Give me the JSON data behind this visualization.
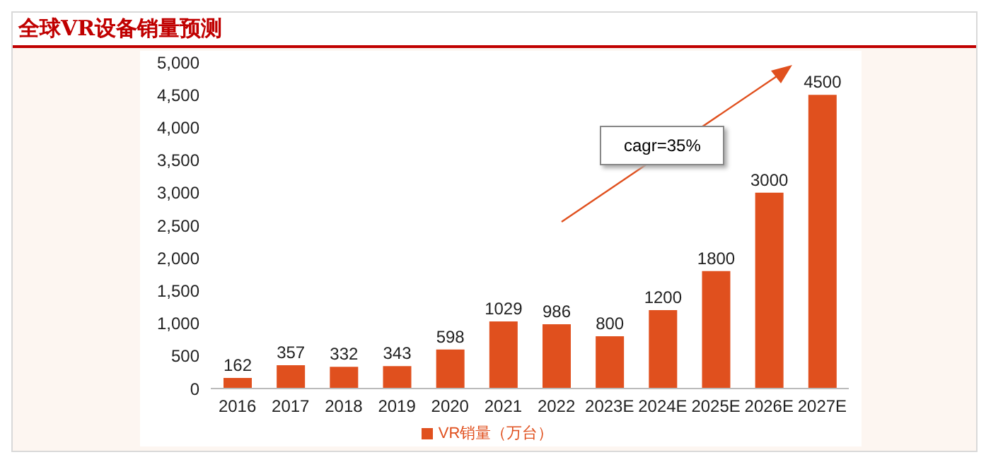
{
  "chart_data": {
    "type": "bar",
    "title": "全球VR设备销量预测",
    "categories": [
      "2016",
      "2017",
      "2018",
      "2019",
      "2020",
      "2021",
      "2022",
      "2023E",
      "2024E",
      "2025E",
      "2026E",
      "2027E"
    ],
    "series": [
      {
        "name": "VR销量（万台）",
        "color": "#e0501e",
        "values": [
          162,
          357,
          332,
          343,
          598,
          1029,
          986,
          800,
          1200,
          1800,
          3000,
          4500
        ]
      }
    ],
    "ylim": [
      0,
      5000
    ],
    "yticks": [
      0,
      {
        "value": 500,
        "label": "500"
      },
      {
        "value": 1000,
        "label": "1,000"
      },
      {
        "value": 1500,
        "label": "1,500"
      },
      {
        "value": 2000,
        "label": "2,000"
      },
      {
        "value": 2500,
        "label": "2,500"
      },
      {
        "value": 3000,
        "label": "3,000"
      },
      {
        "value": 3500,
        "label": "3,500"
      },
      {
        "value": 4000,
        "label": "4,000"
      },
      {
        "value": 4500,
        "label": "4,500"
      },
      {
        "value": 5000,
        "label": "5,000"
      }
    ],
    "data_labels": true,
    "grid": false,
    "legend": "bottom",
    "annotations": [
      "cagr=35%"
    ]
  }
}
